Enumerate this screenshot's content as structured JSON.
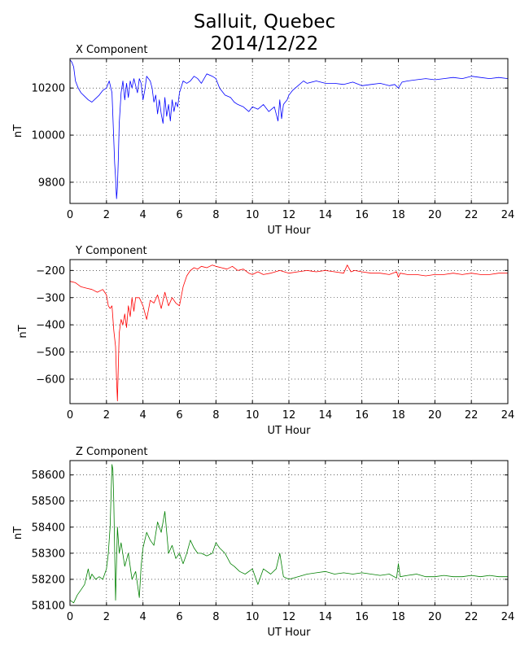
{
  "title": [
    "Salluit, Quebec",
    "2014/12/22"
  ],
  "chart_data": [
    {
      "type": "line",
      "title": "X Component",
      "xlabel": "UT Hour",
      "ylabel": "nT",
      "xlim": [
        0,
        24
      ],
      "ylim": [
        9710,
        10325
      ],
      "xticks": [
        0,
        2,
        4,
        6,
        8,
        10,
        12,
        14,
        16,
        18,
        20,
        22,
        24
      ],
      "yticks": [
        9800,
        10000,
        10200
      ],
      "grid": true,
      "color": "#0000ff",
      "series": [
        {
          "x": [
            0,
            0.1,
            0.2,
            0.3,
            0.45,
            0.6,
            0.8,
            1.0,
            1.2,
            1.4,
            1.6,
            1.8,
            2.0,
            2.15,
            2.3,
            2.4,
            2.45,
            2.5,
            2.55,
            2.6,
            2.65,
            2.7,
            2.8,
            2.9,
            3.0,
            3.1,
            3.2,
            3.3,
            3.4,
            3.5,
            3.6,
            3.7,
            3.8,
            3.9,
            4.0,
            4.1,
            4.2,
            4.3,
            4.4,
            4.5,
            4.6,
            4.7,
            4.8,
            4.9,
            5.0,
            5.1,
            5.2,
            5.3,
            5.4,
            5.5,
            5.6,
            5.7,
            5.8,
            5.9,
            6.0,
            6.2,
            6.4,
            6.6,
            6.8,
            7.0,
            7.2,
            7.5,
            7.8,
            8.0,
            8.2,
            8.5,
            8.8,
            9.0,
            9.2,
            9.5,
            9.8,
            10.0,
            10.3,
            10.6,
            10.9,
            11.2,
            11.4,
            11.5,
            11.6,
            11.7,
            11.8,
            11.9,
            12.0,
            12.2,
            12.5,
            12.8,
            13.0,
            13.5,
            14.0,
            14.5,
            15.0,
            15.5,
            16.0,
            16.5,
            17.0,
            17.5,
            17.8,
            18.0,
            18.2,
            18.5,
            19.0,
            19.5,
            20.0,
            20.5,
            21.0,
            21.5,
            22.0,
            22.5,
            23.0,
            23.5,
            24.0
          ],
          "y": [
            10320,
            10310,
            10290,
            10230,
            10200,
            10180,
            10165,
            10150,
            10140,
            10155,
            10170,
            10190,
            10200,
            10230,
            10180,
            9980,
            9880,
            9820,
            9730,
            9780,
            9900,
            10050,
            10180,
            10230,
            10150,
            10220,
            10160,
            10230,
            10200,
            10240,
            10210,
            10180,
            10240,
            10220,
            10150,
            10190,
            10250,
            10240,
            10230,
            10200,
            10140,
            10170,
            10090,
            10150,
            10090,
            10050,
            10160,
            10080,
            10130,
            10060,
            10150,
            10100,
            10140,
            10120,
            10180,
            10230,
            10220,
            10230,
            10250,
            10240,
            10220,
            10260,
            10250,
            10240,
            10200,
            10170,
            10160,
            10140,
            10130,
            10120,
            10100,
            10120,
            10110,
            10130,
            10100,
            10120,
            10060,
            10150,
            10070,
            10130,
            10140,
            10150,
            10170,
            10190,
            10210,
            10230,
            10220,
            10230,
            10220,
            10220,
            10215,
            10225,
            10210,
            10215,
            10220,
            10210,
            10215,
            10200,
            10225,
            10230,
            10235,
            10240,
            10235,
            10240,
            10245,
            10240,
            10250,
            10245,
            10240,
            10245,
            10240
          ]
        }
      ]
    },
    {
      "type": "line",
      "title": "Y Component",
      "xlabel": "UT Hour",
      "ylabel": "nT",
      "xlim": [
        0,
        24
      ],
      "ylim": [
        -690,
        -160
      ],
      "xticks": [
        0,
        2,
        4,
        6,
        8,
        10,
        12,
        14,
        16,
        18,
        20,
        22,
        24
      ],
      "yticks": [
        -200,
        -300,
        -400,
        -500,
        -600
      ],
      "grid": true,
      "color": "#ff0000",
      "series": [
        {
          "x": [
            0,
            0.3,
            0.6,
            0.9,
            1.2,
            1.5,
            1.8,
            2.0,
            2.1,
            2.2,
            2.3,
            2.4,
            2.5,
            2.55,
            2.6,
            2.65,
            2.7,
            2.8,
            2.9,
            3.0,
            3.1,
            3.2,
            3.3,
            3.4,
            3.5,
            3.6,
            3.8,
            4.0,
            4.2,
            4.4,
            4.6,
            4.8,
            5.0,
            5.2,
            5.4,
            5.6,
            5.8,
            6.0,
            6.2,
            6.4,
            6.6,
            6.8,
            7.0,
            7.2,
            7.5,
            7.8,
            8.0,
            8.3,
            8.6,
            8.9,
            9.2,
            9.5,
            9.8,
            10.0,
            10.3,
            10.6,
            11.0,
            11.5,
            12.0,
            12.5,
            13.0,
            13.5,
            14.0,
            14.5,
            15.0,
            15.2,
            15.4,
            15.6,
            16.0,
            16.5,
            17.0,
            17.5,
            17.9,
            18.0,
            18.1,
            18.5,
            19.0,
            19.5,
            20.0,
            20.5,
            21.0,
            21.5,
            22.0,
            22.5,
            23.0,
            23.5,
            24.0
          ],
          "y": [
            -240,
            -245,
            -260,
            -265,
            -270,
            -280,
            -270,
            -290,
            -330,
            -340,
            -330,
            -420,
            -480,
            -600,
            -680,
            -550,
            -430,
            -380,
            -400,
            -360,
            -410,
            -330,
            -370,
            -300,
            -350,
            -300,
            -300,
            -330,
            -380,
            -310,
            -320,
            -290,
            -340,
            -280,
            -330,
            -300,
            -320,
            -330,
            -260,
            -220,
            -200,
            -190,
            -195,
            -185,
            -190,
            -180,
            -185,
            -190,
            -195,
            -185,
            -200,
            -195,
            -210,
            -215,
            -205,
            -215,
            -210,
            -200,
            -210,
            -205,
            -200,
            -205,
            -200,
            -205,
            -210,
            -180,
            -205,
            -200,
            -205,
            -210,
            -210,
            -215,
            -205,
            -225,
            -210,
            -215,
            -215,
            -220,
            -215,
            -215,
            -210,
            -215,
            -210,
            -215,
            -215,
            -210,
            -210
          ]
        }
      ]
    },
    {
      "type": "line",
      "title": "Z Component",
      "xlabel": "UT Hour",
      "ylabel": "nT",
      "xlim": [
        0,
        24
      ],
      "ylim": [
        58100,
        58655
      ],
      "xticks": [
        0,
        2,
        4,
        6,
        8,
        10,
        12,
        14,
        16,
        18,
        20,
        22,
        24
      ],
      "yticks": [
        58100,
        58200,
        58300,
        58400,
        58500,
        58600
      ],
      "grid": true,
      "color": "#008000",
      "series": [
        {
          "x": [
            0,
            0.2,
            0.4,
            0.6,
            0.8,
            1.0,
            1.1,
            1.2,
            1.4,
            1.6,
            1.8,
            2.0,
            2.1,
            2.2,
            2.3,
            2.35,
            2.4,
            2.5,
            2.6,
            2.7,
            2.8,
            3.0,
            3.2,
            3.4,
            3.6,
            3.8,
            3.9,
            4.0,
            4.2,
            4.4,
            4.6,
            4.8,
            5.0,
            5.2,
            5.4,
            5.6,
            5.8,
            6.0,
            6.2,
            6.4,
            6.6,
            6.8,
            7.0,
            7.2,
            7.5,
            7.8,
            8.0,
            8.2,
            8.5,
            8.8,
            9.0,
            9.3,
            9.6,
            10.0,
            10.3,
            10.6,
            11.0,
            11.3,
            11.5,
            11.7,
            12.0,
            12.5,
            13.0,
            13.5,
            14.0,
            14.5,
            15.0,
            15.5,
            16.0,
            16.5,
            17.0,
            17.5,
            17.9,
            18.0,
            18.1,
            18.5,
            19.0,
            19.5,
            20.0,
            20.5,
            21.0,
            21.5,
            22.0,
            22.5,
            23.0,
            23.5,
            24.0
          ],
          "y": [
            58120,
            58110,
            58140,
            58160,
            58180,
            58240,
            58200,
            58220,
            58200,
            58210,
            58200,
            58240,
            58300,
            58400,
            58640,
            58620,
            58500,
            58120,
            58400,
            58300,
            58340,
            58250,
            58300,
            58200,
            58230,
            58130,
            58250,
            58320,
            58380,
            58350,
            58330,
            58420,
            58380,
            58460,
            58300,
            58330,
            58280,
            58300,
            58260,
            58300,
            58350,
            58320,
            58300,
            58300,
            58290,
            58300,
            58340,
            58320,
            58300,
            58260,
            58250,
            58230,
            58220,
            58240,
            58180,
            58240,
            58220,
            58240,
            58300,
            58210,
            58200,
            58210,
            58220,
            58225,
            58230,
            58220,
            58225,
            58220,
            58225,
            58220,
            58215,
            58220,
            58205,
            58260,
            58210,
            58215,
            58220,
            58210,
            58210,
            58215,
            58210,
            58210,
            58215,
            58210,
            58215,
            58210,
            58210
          ]
        }
      ]
    }
  ]
}
